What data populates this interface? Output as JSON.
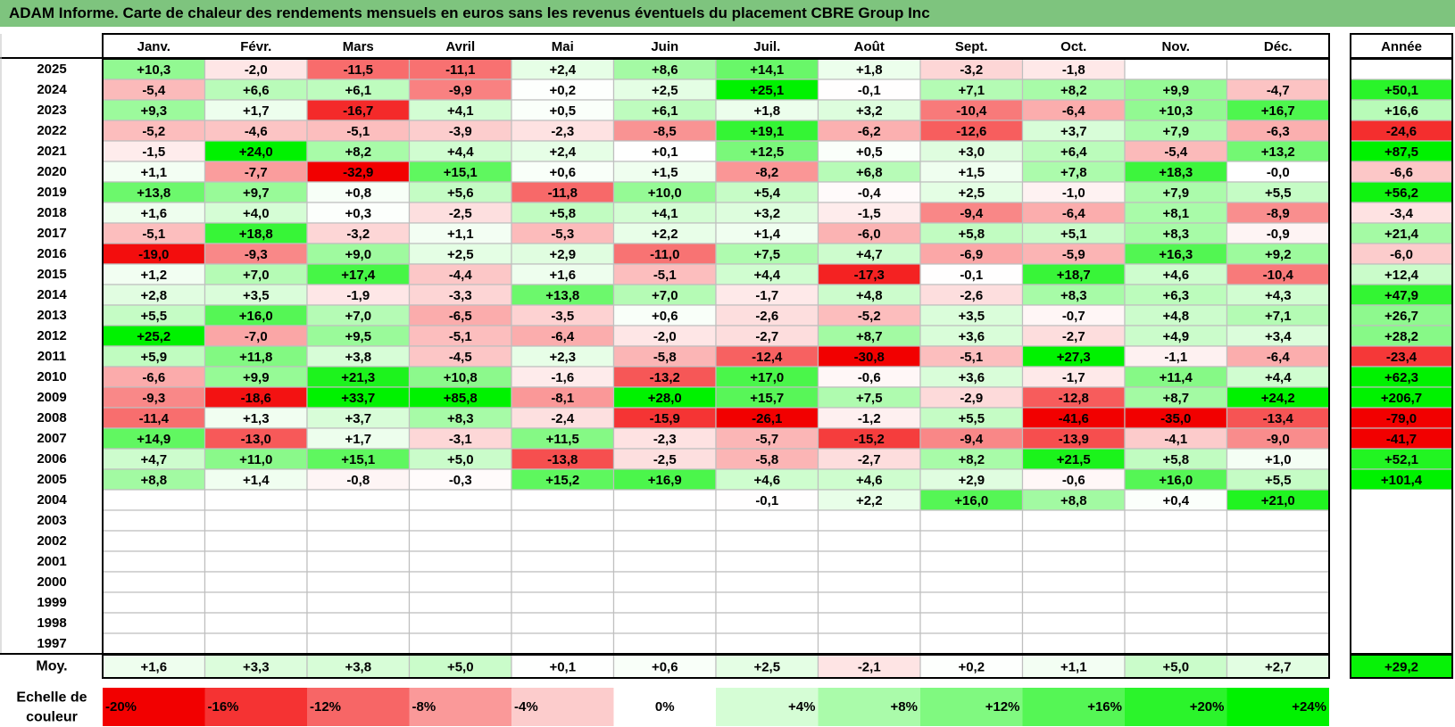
{
  "title": "ADAM Informe. Carte de chaleur des rendements mensuels en euros sans les revenus éventuels du placement CBRE Group Inc",
  "chart_data": {
    "type": "heatmap",
    "title": "ADAM Informe. Carte de chaleur des rendements mensuels en euros sans les revenus éventuels du placement CBRE Group Inc",
    "months": [
      "Janv.",
      "Févr.",
      "Mars",
      "Avril",
      "Mai",
      "Juin",
      "Juil.",
      "Août",
      "Sept.",
      "Oct.",
      "Nov.",
      "Déc."
    ],
    "year_header": "Année",
    "years": [
      "2025",
      "2024",
      "2023",
      "2022",
      "2021",
      "2020",
      "2019",
      "2018",
      "2017",
      "2016",
      "2015",
      "2014",
      "2013",
      "2012",
      "2011",
      "2010",
      "2009",
      "2008",
      "2007",
      "2006",
      "2005",
      "2004",
      "2003",
      "2002",
      "2001",
      "2000",
      "1999",
      "1998",
      "1997"
    ],
    "values": [
      [
        "+10,3",
        "-2,0",
        "-11,5",
        "-11,1",
        "+2,4",
        "+8,6",
        "+14,1",
        "+1,8",
        "-3,2",
        "-1,8",
        "",
        ""
      ],
      [
        "-5,4",
        "+6,6",
        "+6,1",
        "-9,9",
        "+0,2",
        "+2,5",
        "+25,1",
        "-0,1",
        "+7,1",
        "+8,2",
        "+9,9",
        "-4,7"
      ],
      [
        "+9,3",
        "+1,7",
        "-16,7",
        "+4,1",
        "+0,5",
        "+6,1",
        "+1,8",
        "+3,2",
        "-10,4",
        "-6,4",
        "+10,3",
        "+16,7"
      ],
      [
        "-5,2",
        "-4,6",
        "-5,1",
        "-3,9",
        "-2,3",
        "-8,5",
        "+19,1",
        "-6,2",
        "-12,6",
        "+3,7",
        "+7,9",
        "-6,3"
      ],
      [
        "-1,5",
        "+24,0",
        "+8,2",
        "+4,4",
        "+2,4",
        "+0,1",
        "+12,5",
        "+0,5",
        "+3,0",
        "+6,4",
        "-5,4",
        "+13,2"
      ],
      [
        "+1,1",
        "-7,7",
        "-32,9",
        "+15,1",
        "+0,6",
        "+1,5",
        "-8,2",
        "+6,8",
        "+1,5",
        "+7,8",
        "+18,3",
        "-0,0"
      ],
      [
        "+13,8",
        "+9,7",
        "+0,8",
        "+5,6",
        "-11,8",
        "+10,0",
        "+5,4",
        "-0,4",
        "+2,5",
        "-1,0",
        "+7,9",
        "+5,5"
      ],
      [
        "+1,6",
        "+4,0",
        "+0,3",
        "-2,5",
        "+5,8",
        "+4,1",
        "+3,2",
        "-1,5",
        "-9,4",
        "-6,4",
        "+8,1",
        "-8,9"
      ],
      [
        "-5,1",
        "+18,8",
        "-3,2",
        "+1,1",
        "-5,3",
        "+2,2",
        "+1,4",
        "-6,0",
        "+5,8",
        "+5,1",
        "+8,3",
        "-0,9"
      ],
      [
        "-19,0",
        "-9,3",
        "+9,0",
        "+2,5",
        "+2,9",
        "-11,0",
        "+7,5",
        "+4,7",
        "-6,9",
        "-5,9",
        "+16,3",
        "+9,2"
      ],
      [
        "+1,2",
        "+7,0",
        "+17,4",
        "-4,4",
        "+1,6",
        "-5,1",
        "+4,4",
        "-17,3",
        "-0,1",
        "+18,7",
        "+4,6",
        "-10,4"
      ],
      [
        "+2,8",
        "+3,5",
        "-1,9",
        "-3,3",
        "+13,8",
        "+7,0",
        "-1,7",
        "+4,8",
        "-2,6",
        "+8,3",
        "+6,3",
        "+4,3"
      ],
      [
        "+5,5",
        "+16,0",
        "+7,0",
        "-6,5",
        "-3,5",
        "+0,6",
        "-2,6",
        "-5,2",
        "+3,5",
        "-0,7",
        "+4,8",
        "+7,1"
      ],
      [
        "+25,2",
        "-7,0",
        "+9,5",
        "-5,1",
        "-6,4",
        "-2,0",
        "-2,7",
        "+8,7",
        "+3,6",
        "-2,7",
        "+4,9",
        "+3,4"
      ],
      [
        "+5,9",
        "+11,8",
        "+3,8",
        "-4,5",
        "+2,3",
        "-5,8",
        "-12,4",
        "-30,8",
        "-5,1",
        "+27,3",
        "-1,1",
        "-6,4"
      ],
      [
        "-6,6",
        "+9,9",
        "+21,3",
        "+10,8",
        "-1,6",
        "-13,2",
        "+17,0",
        "-0,6",
        "+3,6",
        "-1,7",
        "+11,4",
        "+4,4"
      ],
      [
        "-9,3",
        "-18,6",
        "+33,7",
        "+85,8",
        "-8,1",
        "+28,0",
        "+15,7",
        "+7,5",
        "-2,9",
        "-12,8",
        "+8,7",
        "+24,2"
      ],
      [
        "-11,4",
        "+1,3",
        "+3,7",
        "+8,3",
        "-2,4",
        "-15,9",
        "-26,1",
        "-1,2",
        "+5,5",
        "-41,6",
        "-35,0",
        "-13,4"
      ],
      [
        "+14,9",
        "-13,0",
        "+1,7",
        "-3,1",
        "+11,5",
        "-2,3",
        "-5,7",
        "-15,2",
        "-9,4",
        "-13,9",
        "-4,1",
        "-9,0"
      ],
      [
        "+4,7",
        "+11,0",
        "+15,1",
        "+5,0",
        "-13,8",
        "-2,5",
        "-5,8",
        "-2,7",
        "+8,2",
        "+21,5",
        "+5,8",
        "+1,0"
      ],
      [
        "+8,8",
        "+1,4",
        "-0,8",
        "-0,3",
        "+15,2",
        "+16,9",
        "+4,6",
        "+4,6",
        "+2,9",
        "-0,6",
        "+16,0",
        "+5,5"
      ],
      [
        "",
        "",
        "",
        "",
        "",
        "",
        "-0,1",
        "+2,2",
        "+16,0",
        "+8,8",
        "+0,4",
        "+21,0"
      ],
      [
        "",
        "",
        "",
        "",
        "",
        "",
        "",
        "",
        "",
        "",
        "",
        ""
      ],
      [
        "",
        "",
        "",
        "",
        "",
        "",
        "",
        "",
        "",
        "",
        "",
        ""
      ],
      [
        "",
        "",
        "",
        "",
        "",
        "",
        "",
        "",
        "",
        "",
        "",
        ""
      ],
      [
        "",
        "",
        "",
        "",
        "",
        "",
        "",
        "",
        "",
        "",
        "",
        ""
      ],
      [
        "",
        "",
        "",
        "",
        "",
        "",
        "",
        "",
        "",
        "",
        "",
        ""
      ],
      [
        "",
        "",
        "",
        "",
        "",
        "",
        "",
        "",
        "",
        "",
        "",
        ""
      ],
      [
        "",
        "",
        "",
        "",
        "",
        "",
        "",
        "",
        "",
        "",
        "",
        ""
      ]
    ],
    "annual": [
      "",
      "+50,1",
      "+16,6",
      "-24,6",
      "+87,5",
      "-6,6",
      "+56,2",
      "-3,4",
      "+21,4",
      "-6,0",
      "+12,4",
      "+47,9",
      "+26,7",
      "+28,2",
      "-23,4",
      "+62,3",
      "+206,7",
      "-79,0",
      "-41,7",
      "+52,1",
      "+101,4",
      "",
      "",
      "",
      "",
      "",
      "",
      "",
      ""
    ],
    "average_label": "Moy.",
    "averages": [
      "+1,6",
      "+3,3",
      "+3,8",
      "+5,0",
      "+0,1",
      "+0,6",
      "+2,5",
      "-2,1",
      "+0,2",
      "+1,1",
      "+5,0",
      "+2,7"
    ],
    "average_annual": "+29,2",
    "scale_label": [
      "Echelle de",
      "couleur"
    ],
    "scale": [
      "-20%",
      "-16%",
      "-12%",
      "-8%",
      "-4%",
      "0%",
      "+4%",
      "+8%",
      "+12%",
      "+16%",
      "+20%",
      "+24%"
    ],
    "colors": {
      "red": "#f20000",
      "green": "#00f200",
      "white": "#ffffff",
      "grid": "#bfbfbf",
      "border": "#000000",
      "title_bg": "#7ec47e"
    }
  }
}
